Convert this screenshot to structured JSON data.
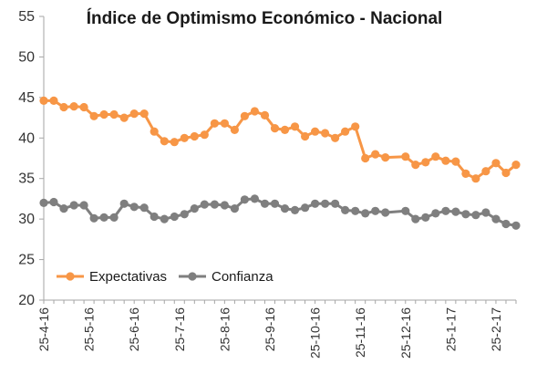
{
  "chart_data": {
    "type": "line",
    "title": "Índice de Optimismo Económico - Nacional",
    "xlabel": "",
    "ylabel": "",
    "ylim": [
      20,
      55
    ],
    "yticks": [
      "20",
      "25",
      "30",
      "35",
      "40",
      "45",
      "50",
      "55"
    ],
    "x_labels": [
      "25-4-16",
      "25-5-16",
      "25-6-16",
      "25-7-16",
      "25-8-16",
      "25-9-16",
      "25-10-16",
      "25-11-16",
      "25-12-16",
      "25-1-17",
      "25-2-17"
    ],
    "legend_position": "bottom-left",
    "grid": false,
    "series": [
      {
        "name": "Expectativas",
        "color": "#F79646",
        "marker": "circle",
        "points": [
          [
            0,
            44.6
          ],
          [
            2,
            44.6
          ],
          [
            4,
            43.8
          ],
          [
            6,
            43.9
          ],
          [
            8,
            43.8
          ],
          [
            10,
            42.7
          ],
          [
            12,
            42.9
          ],
          [
            14,
            42.9
          ],
          [
            16,
            42.5
          ],
          [
            18,
            43.0
          ],
          [
            20,
            43.0
          ],
          [
            22,
            40.8
          ],
          [
            24,
            39.6
          ],
          [
            26,
            39.5
          ],
          [
            28,
            40.0
          ],
          [
            30,
            40.2
          ],
          [
            32,
            40.4
          ],
          [
            34,
            41.8
          ],
          [
            36,
            41.8
          ],
          [
            38,
            41.0
          ],
          [
            40,
            42.7
          ],
          [
            42,
            43.3
          ],
          [
            44,
            42.8
          ],
          [
            46,
            41.2
          ],
          [
            48,
            41.0
          ],
          [
            50,
            41.4
          ],
          [
            52,
            40.2
          ],
          [
            54,
            40.8
          ],
          [
            56,
            40.6
          ],
          [
            58,
            40.0
          ],
          [
            60,
            40.8
          ],
          [
            62,
            41.4
          ],
          [
            64,
            37.5
          ],
          [
            66,
            38.0
          ],
          [
            68,
            37.6
          ],
          [
            72,
            37.7
          ],
          [
            74,
            36.7
          ],
          [
            76,
            37.0
          ],
          [
            78,
            37.7
          ],
          [
            80,
            37.2
          ],
          [
            82,
            37.1
          ],
          [
            84,
            35.6
          ],
          [
            86,
            35.0
          ],
          [
            88,
            35.9
          ],
          [
            90,
            36.9
          ],
          [
            92,
            35.7
          ],
          [
            94,
            36.7
          ]
        ]
      },
      {
        "name": "Confianza",
        "color": "#7F7F7F",
        "marker": "circle",
        "points": [
          [
            0,
            32.0
          ],
          [
            2,
            32.1
          ],
          [
            4,
            31.3
          ],
          [
            6,
            31.7
          ],
          [
            8,
            31.7
          ],
          [
            10,
            30.1
          ],
          [
            12,
            30.2
          ],
          [
            14,
            30.2
          ],
          [
            16,
            31.9
          ],
          [
            18,
            31.5
          ],
          [
            20,
            31.4
          ],
          [
            22,
            30.3
          ],
          [
            24,
            30.0
          ],
          [
            26,
            30.3
          ],
          [
            28,
            30.6
          ],
          [
            30,
            31.3
          ],
          [
            32,
            31.8
          ],
          [
            34,
            31.8
          ],
          [
            36,
            31.7
          ],
          [
            38,
            31.3
          ],
          [
            40,
            32.4
          ],
          [
            42,
            32.5
          ],
          [
            44,
            31.9
          ],
          [
            46,
            31.9
          ],
          [
            48,
            31.3
          ],
          [
            50,
            31.1
          ],
          [
            52,
            31.4
          ],
          [
            54,
            31.9
          ],
          [
            56,
            31.9
          ],
          [
            58,
            31.9
          ],
          [
            60,
            31.1
          ],
          [
            62,
            31.0
          ],
          [
            64,
            30.7
          ],
          [
            66,
            31.0
          ],
          [
            68,
            30.8
          ],
          [
            72,
            31.0
          ],
          [
            74,
            30.0
          ],
          [
            76,
            30.2
          ],
          [
            78,
            30.7
          ],
          [
            80,
            31.0
          ],
          [
            82,
            30.9
          ],
          [
            84,
            30.6
          ],
          [
            86,
            30.5
          ],
          [
            88,
            30.8
          ],
          [
            90,
            30.0
          ],
          [
            92,
            29.4
          ],
          [
            94,
            29.2
          ]
        ]
      }
    ]
  }
}
